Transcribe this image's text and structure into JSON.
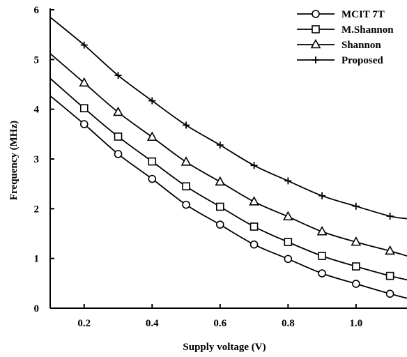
{
  "chart_data": {
    "type": "line",
    "xlabel": "Supply voltage (V)",
    "ylabel": "Frequency (MHz)",
    "xlim": [
      0.1,
      1.15
    ],
    "ylim": [
      0,
      6
    ],
    "xticks": [
      0.2,
      0.4,
      0.6,
      0.8,
      1.0
    ],
    "xtick_labels": [
      "0.2",
      "0.4",
      "0.6",
      "0.8",
      "1.0"
    ],
    "yticks": [
      0,
      1,
      2,
      3,
      4,
      5,
      6
    ],
    "ytick_labels": [
      "0",
      "1",
      "2",
      "3",
      "4",
      "5",
      "6"
    ],
    "grid": false,
    "legend_position": "top-right",
    "series": [
      {
        "name": "MCIT 7T",
        "marker": "circle",
        "x": [
          0.1,
          0.2,
          0.3,
          0.4,
          0.5,
          0.6,
          0.7,
          0.8,
          0.9,
          1.0,
          1.1,
          1.15
        ],
        "y": [
          4.27,
          3.7,
          3.1,
          2.6,
          2.08,
          1.68,
          1.28,
          0.99,
          0.7,
          0.49,
          0.29,
          0.2
        ],
        "marker_x": [
          0.2,
          0.3,
          0.4,
          0.5,
          0.6,
          0.7,
          0.8,
          0.9,
          1.0,
          1.1
        ],
        "marker_y": [
          3.7,
          3.1,
          2.6,
          2.08,
          1.68,
          1.28,
          0.99,
          0.7,
          0.49,
          0.29
        ]
      },
      {
        "name": "M.Shannon",
        "marker": "square",
        "x": [
          0.1,
          0.2,
          0.3,
          0.4,
          0.5,
          0.6,
          0.7,
          0.8,
          0.9,
          1.0,
          1.1,
          1.15
        ],
        "y": [
          4.62,
          4.02,
          3.45,
          2.95,
          2.45,
          2.04,
          1.64,
          1.33,
          1.05,
          0.84,
          0.65,
          0.57
        ],
        "marker_x": [
          0.2,
          0.3,
          0.4,
          0.5,
          0.6,
          0.7,
          0.8,
          0.9,
          1.0,
          1.1
        ],
        "marker_y": [
          4.02,
          3.45,
          2.95,
          2.45,
          2.04,
          1.64,
          1.33,
          1.05,
          0.84,
          0.65
        ]
      },
      {
        "name": "Shannon",
        "marker": "triangle",
        "x": [
          0.1,
          0.2,
          0.3,
          0.4,
          0.5,
          0.6,
          0.7,
          0.8,
          0.9,
          1.0,
          1.1,
          1.15
        ],
        "y": [
          5.12,
          4.53,
          3.94,
          3.44,
          2.94,
          2.54,
          2.14,
          1.84,
          1.54,
          1.33,
          1.15,
          1.05
        ],
        "marker_x": [
          0.2,
          0.3,
          0.4,
          0.5,
          0.6,
          0.7,
          0.8,
          0.9,
          1.0,
          1.1
        ],
        "marker_y": [
          4.53,
          3.94,
          3.44,
          2.94,
          2.54,
          2.14,
          1.84,
          1.54,
          1.33,
          1.15
        ]
      },
      {
        "name": "Proposed",
        "marker": "plus",
        "x": [
          0.1,
          0.2,
          0.3,
          0.4,
          0.5,
          0.6,
          0.7,
          0.8,
          0.9,
          1.0,
          1.1,
          1.15
        ],
        "y": [
          5.85,
          5.29,
          4.68,
          4.17,
          3.68,
          3.28,
          2.87,
          2.56,
          2.26,
          2.05,
          1.85,
          1.8
        ],
        "marker_x": [
          0.2,
          0.3,
          0.4,
          0.5,
          0.6,
          0.7,
          0.8,
          0.9,
          1.0,
          1.1
        ],
        "marker_y": [
          5.29,
          4.68,
          4.17,
          3.68,
          3.28,
          2.87,
          2.56,
          2.26,
          2.05,
          1.85
        ]
      }
    ]
  }
}
